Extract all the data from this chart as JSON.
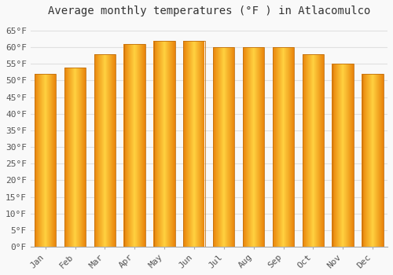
{
  "months": [
    "Jan",
    "Feb",
    "Mar",
    "Apr",
    "May",
    "Jun",
    "Jul",
    "Aug",
    "Sep",
    "Oct",
    "Nov",
    "Dec"
  ],
  "values": [
    52,
    54,
    58,
    61,
    62,
    62,
    60,
    60,
    60,
    58,
    55,
    52
  ],
  "bar_color_edge": "#E8820A",
  "bar_color_center": "#FFD040",
  "bar_color_mid": "#FFA500",
  "title": "Average monthly temperatures (°F ) in Atlacomulco",
  "ylim": [
    0,
    68
  ],
  "yticks": [
    0,
    5,
    10,
    15,
    20,
    25,
    30,
    35,
    40,
    45,
    50,
    55,
    60,
    65
  ],
  "ytick_labels": [
    "0°F",
    "5°F",
    "10°F",
    "15°F",
    "20°F",
    "25°F",
    "30°F",
    "35°F",
    "40°F",
    "45°F",
    "50°F",
    "55°F",
    "60°F",
    "65°F"
  ],
  "background_color": "#f9f9f9",
  "grid_color": "#e0e0e0",
  "title_fontsize": 10,
  "tick_fontsize": 8,
  "bar_width": 0.72
}
